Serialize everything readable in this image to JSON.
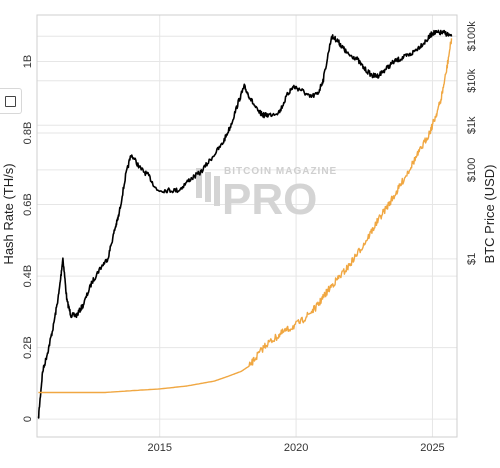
{
  "chart_data": {
    "type": "line",
    "title": "",
    "xlabel": "",
    "y_left_label": "Hash Rate (TH/s)",
    "y_right_label": "BTC Price (USD)",
    "x_range": [
      2010.5,
      2025.9
    ],
    "x_ticks": [
      2015,
      2020,
      2025
    ],
    "x_tick_labels": [
      "2015",
      "2020",
      "2025"
    ],
    "y_left_range": [
      -50000000,
      1130000000
    ],
    "y_left_ticks": [
      0,
      200000000,
      400000000,
      600000000,
      800000000,
      1000000000
    ],
    "y_left_tick_labels": [
      "0",
      "0.2B",
      "0.4B",
      "0.6B",
      "0.8B",
      "1B"
    ],
    "y_right_scale": "log",
    "y_right_range": [
      0.0001,
      300000
    ],
    "y_right_ticks": [
      1,
      100,
      1000,
      10000,
      100000
    ],
    "y_right_tick_labels": [
      "$1",
      "$100",
      "$1k",
      "$10k",
      "$100k"
    ],
    "grid": true,
    "series": [
      {
        "axis": "left",
        "color": "#000000",
        "x": [
          2010.55,
          2010.7,
          2010.9,
          2011.1,
          2011.3,
          2011.45,
          2011.6,
          2011.75,
          2011.95,
          2012.2,
          2012.5,
          2012.8,
          2013.1,
          2013.35,
          2013.5,
          2013.75,
          2013.95,
          2014.3,
          2014.6,
          2014.9,
          2015.3,
          2015.7,
          2016.1,
          2016.5,
          2016.9,
          2017.3,
          2017.6,
          2017.9,
          2018.1,
          2018.3,
          2018.6,
          2018.8,
          2019.0,
          2019.4,
          2019.7,
          2019.9,
          2020.2,
          2020.5,
          2020.8,
          2021.0,
          2021.3,
          2021.5,
          2021.7,
          2021.9,
          2022.2,
          2022.5,
          2022.8,
          2023.0,
          2023.3,
          2023.6,
          2023.9,
          2024.2,
          2024.5,
          2024.8,
          2025.0,
          2025.2,
          2025.45,
          2025.7
        ],
        "values": [
          0,
          130000000,
          190000000,
          260000000,
          350000000,
          450000000,
          330000000,
          290000000,
          290000000,
          320000000,
          380000000,
          420000000,
          450000000,
          530000000,
          570000000,
          680000000,
          740000000,
          700000000,
          680000000,
          640000000,
          640000000,
          640000000,
          670000000,
          690000000,
          730000000,
          770000000,
          820000000,
          890000000,
          930000000,
          900000000,
          860000000,
          850000000,
          850000000,
          860000000,
          910000000,
          930000000,
          920000000,
          900000000,
          910000000,
          950000000,
          1070000000,
          1060000000,
          1040000000,
          1020000000,
          1010000000,
          980000000,
          960000000,
          960000000,
          980000000,
          1000000000,
          1010000000,
          1020000000,
          1040000000,
          1060000000,
          1080000000,
          1080000000,
          1080000000,
          1070000000
        ]
      },
      {
        "axis": "right",
        "color": "#f0a742",
        "x": [
          2010.55,
          2011.0,
          2012.0,
          2013.0,
          2014.0,
          2015.0,
          2016.0,
          2017.0,
          2017.5,
          2018.0,
          2018.3,
          2018.6,
          2018.9,
          2019.2,
          2019.5,
          2019.8,
          2020.2,
          2020.5,
          2020.8,
          2021.0,
          2021.3,
          2021.6,
          2021.9,
          2022.2,
          2022.5,
          2022.8,
          2023.1,
          2023.4,
          2023.7,
          2024.0,
          2024.3,
          2024.6,
          2024.9,
          2025.1,
          2025.3,
          2025.5,
          2025.7
        ],
        "values": [
          0.001,
          0.001,
          0.001,
          0.001,
          0.0011,
          0.0012,
          0.0014,
          0.0018,
          0.0023,
          0.003,
          0.004,
          0.007,
          0.012,
          0.016,
          0.022,
          0.028,
          0.04,
          0.06,
          0.09,
          0.14,
          0.25,
          0.4,
          0.65,
          1.2,
          2.2,
          4.5,
          9,
          17,
          33,
          70,
          150,
          310,
          700,
          1500,
          3500,
          15000,
          90000
        ]
      }
    ]
  },
  "watermark": {
    "small": "BITCOIN MAGAZINE",
    "big": "PRO"
  },
  "toolbar": {
    "toggle_icon": "square-outline-icon"
  }
}
